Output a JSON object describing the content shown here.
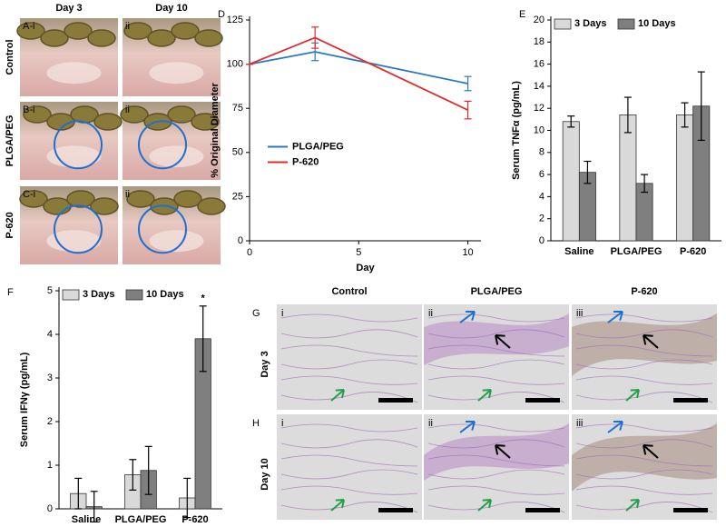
{
  "photos": {
    "columns": [
      "Day 3",
      "Day 10"
    ],
    "rows": [
      {
        "label": "Control",
        "tags": [
          "A-i",
          "ii"
        ]
      },
      {
        "label": "PLGA/PEG",
        "tags": [
          "B-i",
          "ii"
        ]
      },
      {
        "label": "P-620",
        "tags": [
          "C-i",
          "ii"
        ]
      }
    ]
  },
  "histology": {
    "columns": [
      "Control",
      "PLGA/PEG",
      "P-620"
    ],
    "rows": [
      {
        "panel": "G",
        "label": "Day 3",
        "tags": [
          "i",
          "ii",
          "iii"
        ]
      },
      {
        "panel": "H",
        "label": "Day 10",
        "tags": [
          "i",
          "ii",
          "iii"
        ]
      }
    ]
  },
  "chart_data": [
    {
      "type": "line",
      "panel_label": "D",
      "xlabel": "Day",
      "ylabel": "% Original Diameter",
      "x": [
        0,
        3,
        10
      ],
      "xlim": [
        0,
        10.6
      ],
      "xticks": [
        0,
        5,
        10
      ],
      "ylim": [
        0,
        125
      ],
      "yticks": [
        0,
        25,
        50,
        75,
        100,
        125
      ],
      "legend": "center right",
      "series": [
        {
          "name": "PLGA/PEG",
          "color": "#2b78c2",
          "values": [
            100,
            107,
            89
          ],
          "errors": [
            0,
            5,
            4
          ]
        },
        {
          "name": "P-620",
          "color": "#e32b2b",
          "values": [
            100,
            115,
            74
          ],
          "errors": [
            0,
            6,
            5
          ]
        }
      ]
    },
    {
      "type": "bar",
      "panel_label": "E",
      "ylabel": "Serum TNFα (pg/mL)",
      "categories": [
        "Saline",
        "PLGA/PEG",
        "P-620"
      ],
      "ylim": [
        0,
        20
      ],
      "yticks": [
        0,
        2,
        4,
        6,
        8,
        10,
        12,
        14,
        16,
        18,
        20
      ],
      "legend": "upper left",
      "series": [
        {
          "name": "3 Days",
          "color": "#d9d9d9",
          "values": [
            10.8,
            11.4,
            11.4
          ],
          "errors": [
            0.5,
            1.6,
            1.1
          ]
        },
        {
          "name": "10 Days",
          "color": "#7f7f7f",
          "values": [
            6.2,
            5.2,
            12.2
          ],
          "errors": [
            1.0,
            0.8,
            3.1
          ]
        }
      ]
    },
    {
      "type": "bar",
      "panel_label": "F",
      "ylabel": "Serum IFNγ (pg/mL)",
      "annotation": "*",
      "categories": [
        "Saline",
        "PLGA/PEG",
        "P-620"
      ],
      "ylim": [
        0,
        5
      ],
      "yticks": [
        0,
        1,
        2,
        3,
        4,
        5
      ],
      "legend": "upper left",
      "series": [
        {
          "name": "3 Days",
          "color": "#d9d9d9",
          "values": [
            0.35,
            0.78,
            0.25
          ],
          "errors": [
            0.35,
            0.35,
            0.45
          ]
        },
        {
          "name": "10 Days",
          "color": "#7f7f7f",
          "values": [
            0.05,
            0.88,
            3.9
          ],
          "errors": [
            0.35,
            0.55,
            0.75
          ]
        }
      ]
    }
  ]
}
